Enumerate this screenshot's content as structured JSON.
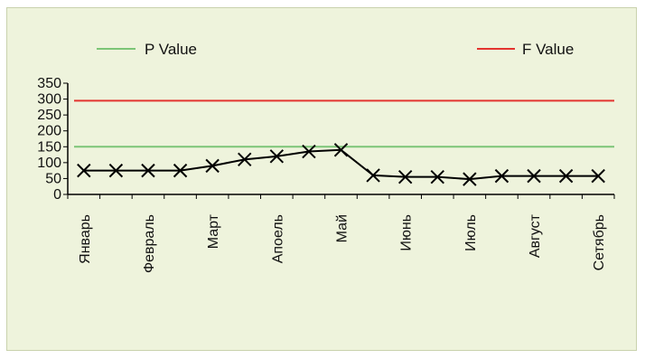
{
  "chart_data": {
    "type": "line",
    "title": "",
    "xlabel": "",
    "ylabel": "",
    "ylim": [
      0,
      350
    ],
    "yticks": [
      0,
      50,
      100,
      150,
      200,
      250,
      300,
      350
    ],
    "category_labels": [
      "Январь",
      "Февраль",
      "Март",
      "Апоель",
      "Май",
      "Июнь",
      "Июль",
      "Август",
      "Сетябрь"
    ],
    "points": [
      75,
      75,
      75,
      75,
      90,
      110,
      120,
      135,
      140,
      60,
      55,
      55,
      48,
      58,
      58,
      58,
      58
    ],
    "reference_lines": [
      {
        "name": "P Value",
        "value": 150,
        "color": "#7cc576"
      },
      {
        "name": "F Value",
        "value": 295,
        "color": "#e3342f"
      }
    ],
    "series_color": "#000000",
    "legend_placement": "top",
    "grid": false
  }
}
